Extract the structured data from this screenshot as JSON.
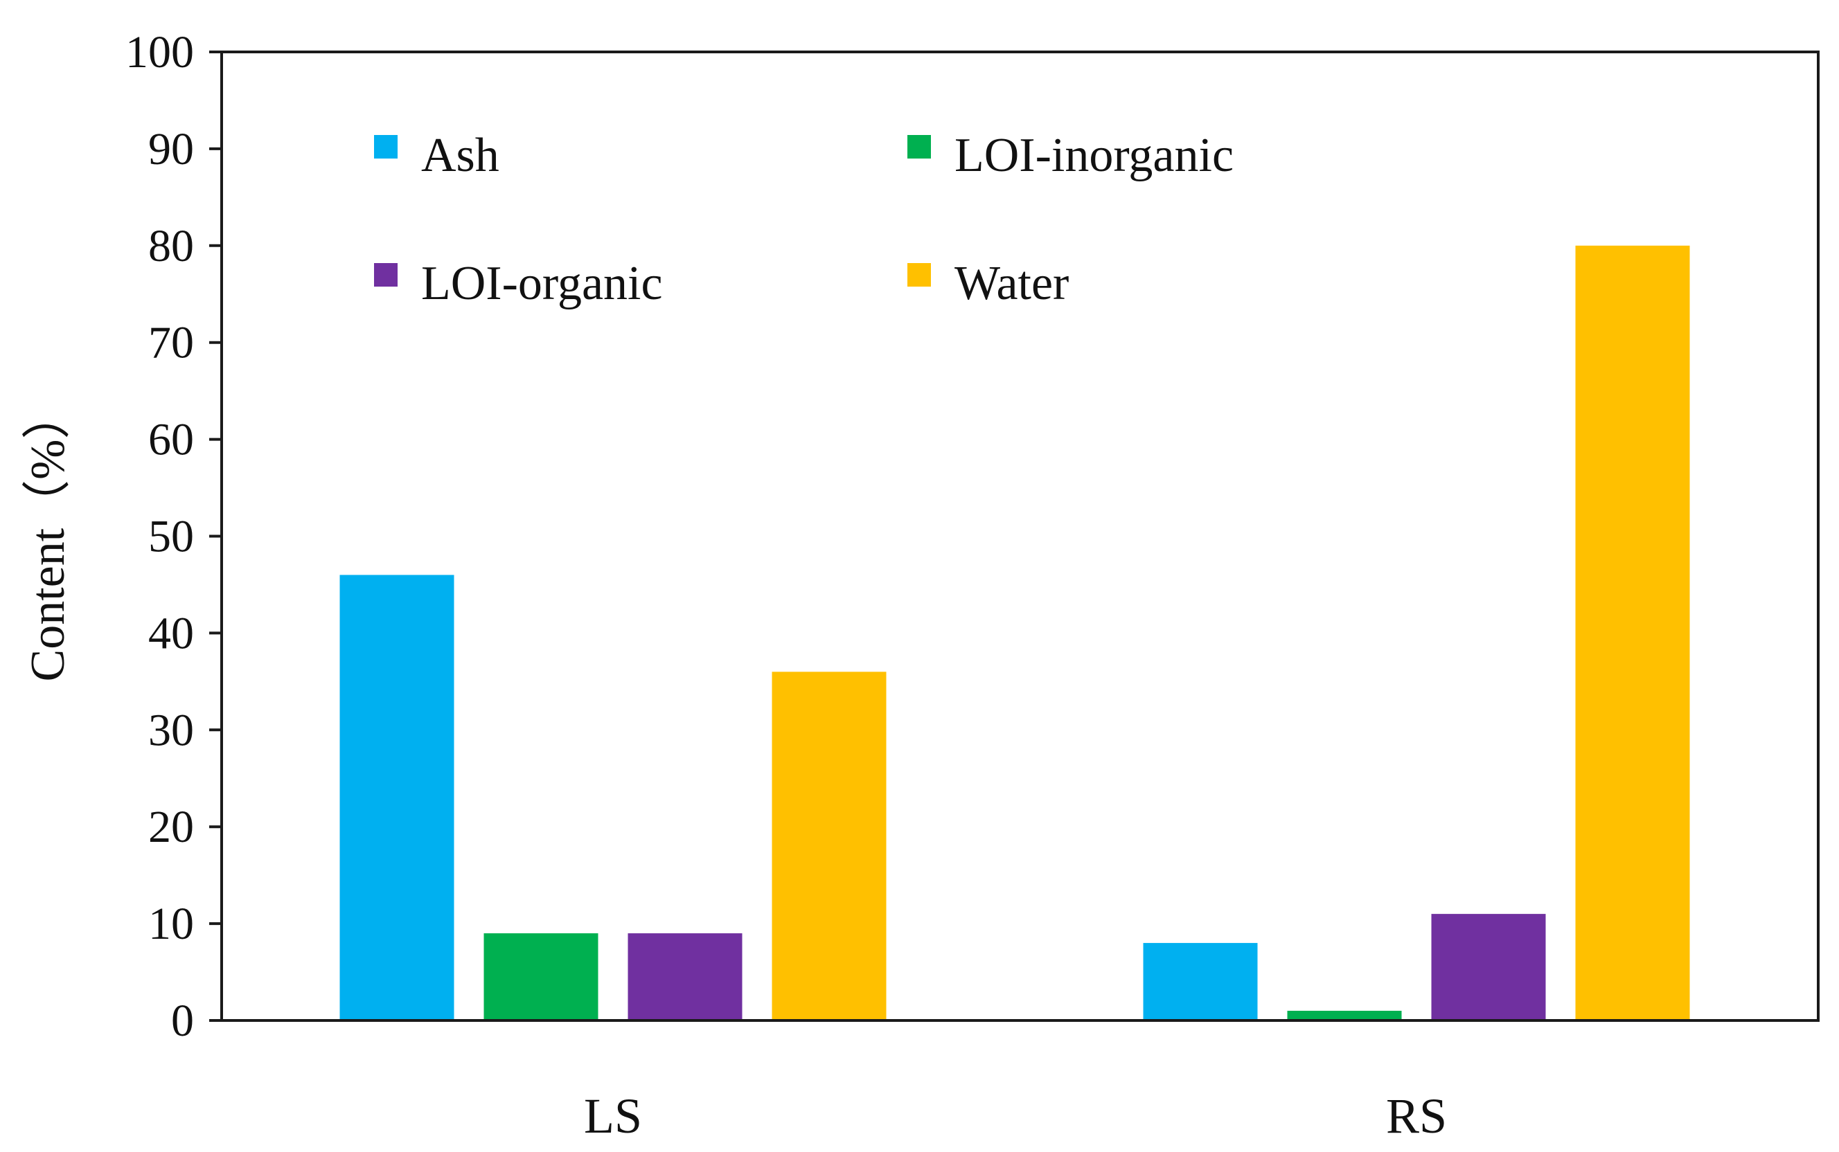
{
  "chart_data": {
    "type": "bar",
    "title": "",
    "xlabel": "",
    "ylabel": "Content（%）",
    "categories": [
      "LS",
      "RS"
    ],
    "series": [
      {
        "name": "Ash",
        "color": "#00B0F0",
        "values": [
          46,
          8
        ]
      },
      {
        "name": "LOI-inorganic",
        "color": "#00B050",
        "values": [
          9,
          1
        ]
      },
      {
        "name": "LOI-organic",
        "color": "#7030A0",
        "values": [
          9,
          11
        ]
      },
      {
        "name": "Water",
        "color": "#FFC000",
        "values": [
          36,
          80
        ]
      }
    ],
    "ylim": [
      0,
      100
    ],
    "yticks": [
      0,
      10,
      20,
      30,
      40,
      50,
      60,
      70,
      80,
      90,
      100
    ],
    "grid": false,
    "legend_position": "top-left, inside plot, two columns"
  }
}
